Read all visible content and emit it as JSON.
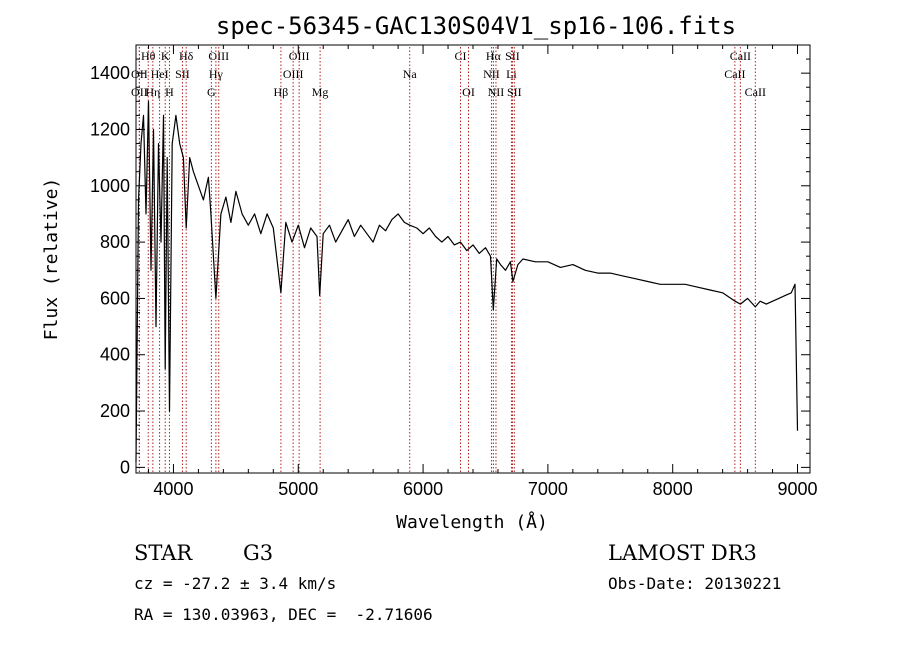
{
  "chart_data": {
    "type": "line",
    "title": "spec-56345-GAC130S04V1_sp16-106.fits",
    "xlabel": "Wavelength (Å)",
    "ylabel": "Flux (relative)",
    "xlim": [
      3700,
      9100
    ],
    "ylim": [
      -20,
      1500
    ],
    "xticks": [
      4000,
      5000,
      6000,
      7000,
      8000,
      9000
    ],
    "yticks": [
      0,
      200,
      400,
      600,
      800,
      1000,
      1200,
      1400
    ],
    "grid": false,
    "series": [
      {
        "x": [
          3700,
          3720,
          3740,
          3760,
          3780,
          3800,
          3820,
          3840,
          3860,
          3880,
          3900,
          3920,
          3934,
          3950,
          3968,
          3990,
          4020,
          4050,
          4080,
          4102,
          4130,
          4160,
          4200,
          4240,
          4280,
          4300,
          4340,
          4380,
          4420,
          4460,
          4500,
          4550,
          4600,
          4650,
          4700,
          4750,
          4800,
          4861,
          4900,
          4950,
          5000,
          5050,
          5100,
          5150,
          5172,
          5200,
          5250,
          5300,
          5350,
          5400,
          5450,
          5500,
          5550,
          5600,
          5650,
          5700,
          5750,
          5800,
          5850,
          5893,
          5950,
          6000,
          6050,
          6100,
          6150,
          6200,
          6250,
          6300,
          6350,
          6400,
          6450,
          6500,
          6540,
          6563,
          6590,
          6620,
          6660,
          6700,
          6720,
          6760,
          6800,
          6900,
          7000,
          7100,
          7200,
          7300,
          7400,
          7500,
          7600,
          7700,
          7800,
          7900,
          8000,
          8100,
          8200,
          8300,
          8400,
          8500,
          8542,
          8600,
          8662,
          8700,
          8750,
          8800,
          8850,
          8900,
          8950,
          8980,
          9000
        ],
        "y": [
          20,
          950,
          1150,
          1250,
          900,
          1300,
          700,
          1200,
          500,
          1150,
          800,
          1250,
          350,
          1100,
          200,
          1150,
          1250,
          1150,
          1100,
          850,
          1100,
          1050,
          1000,
          950,
          1030,
          900,
          600,
          900,
          960,
          870,
          980,
          900,
          860,
          900,
          830,
          900,
          850,
          620,
          870,
          800,
          860,
          780,
          850,
          820,
          610,
          830,
          860,
          800,
          840,
          880,
          820,
          860,
          830,
          800,
          860,
          840,
          880,
          900,
          870,
          860,
          850,
          830,
          850,
          820,
          800,
          820,
          790,
          800,
          770,
          790,
          760,
          780,
          750,
          560,
          740,
          720,
          700,
          730,
          660,
          720,
          740,
          730,
          730,
          710,
          720,
          700,
          690,
          690,
          680,
          670,
          660,
          650,
          650,
          650,
          640,
          630,
          620,
          590,
          580,
          600,
          570,
          590,
          580,
          590,
          600,
          610,
          620,
          650,
          130
        ]
      }
    ],
    "line_markers": [
      {
        "label": "Hθ",
        "x": 3798,
        "row": 1
      },
      {
        "label": "K",
        "x": 3934,
        "row": 1
      },
      {
        "label": "Hδ",
        "x": 4102,
        "row": 1
      },
      {
        "label": "OIII",
        "x": 4363,
        "row": 1
      },
      {
        "label": "OIII",
        "x": 5007,
        "row": 1
      },
      {
        "label": "CI",
        "x": 6300,
        "row": 1
      },
      {
        "label": "Hα",
        "x": 6563,
        "row": 1
      },
      {
        "label": "SII",
        "x": 6716,
        "row": 1
      },
      {
        "label": "CaII",
        "x": 8542,
        "row": 1
      },
      {
        "label": "OII",
        "x": 3727,
        "row": 2
      },
      {
        "label": "HeI",
        "x": 3889,
        "row": 2
      },
      {
        "label": "SII",
        "x": 4072,
        "row": 2
      },
      {
        "label": "Hγ",
        "x": 4340,
        "row": 2
      },
      {
        "label": "OIII",
        "x": 4959,
        "row": 2
      },
      {
        "label": "Na",
        "x": 5893,
        "row": 2
      },
      {
        "label": "NII",
        "x": 6548,
        "row": 2
      },
      {
        "label": "Li",
        "x": 6708,
        "row": 2
      },
      {
        "label": "CaII",
        "x": 8498,
        "row": 2
      },
      {
        "label": "OII",
        "x": 3727,
        "row": 3
      },
      {
        "label": "Hη",
        "x": 3835,
        "row": 3
      },
      {
        "label": "H",
        "x": 3968,
        "row": 3
      },
      {
        "label": "G",
        "x": 4304,
        "row": 3
      },
      {
        "label": "Hβ",
        "x": 4861,
        "row": 3
      },
      {
        "label": "Mg",
        "x": 5175,
        "row": 3
      },
      {
        "label": "OI",
        "x": 6364,
        "row": 3
      },
      {
        "label": "NII",
        "x": 6584,
        "row": 3
      },
      {
        "label": "SII",
        "x": 6731,
        "row": 3
      },
      {
        "label": "CaII",
        "x": 8662,
        "row": 3
      }
    ]
  },
  "info": {
    "object_class": "STAR",
    "subclass": "G3",
    "survey": "LAMOST DR3",
    "redshift": "cz = -27.2 ± 3.4 km/s",
    "obs_date": "Obs-Date: 20130221",
    "coords": "RA = 130.03963, DEC =  -2.71606"
  }
}
